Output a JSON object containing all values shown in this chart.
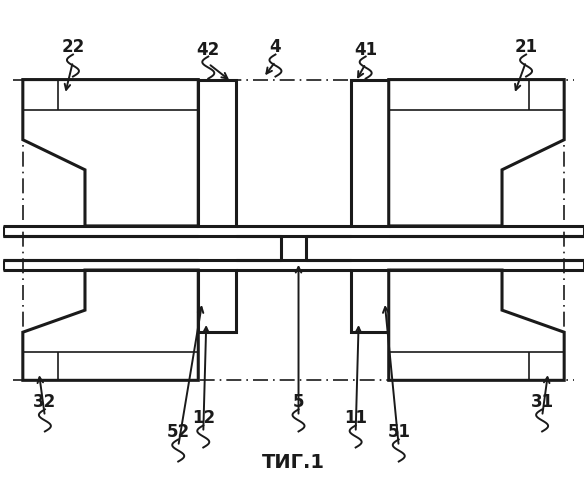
{
  "bg_color": "#ffffff",
  "line_color": "#1a1a1a",
  "figsize": [
    5.87,
    5.0
  ],
  "dpi": 100,
  "title": "ΤИГ.1"
}
